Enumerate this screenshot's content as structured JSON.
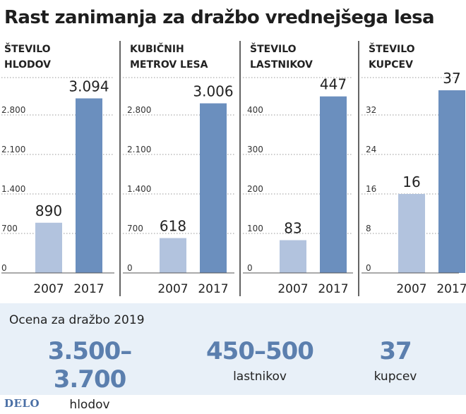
{
  "title": "Rast zanimanja za dražbo vrednejšega lesa",
  "colors": {
    "bar_2007": "#b2c3de",
    "bar_2017": "#6b8fbe",
    "grid": "#9a9a9a",
    "estimate_value": "#5b7fae",
    "estimate_bg": "#e8f0f8",
    "logo": "#4a6fa5"
  },
  "chart_data": [
    {
      "type": "bar",
      "title_lines": [
        "ŠTEVILO",
        "HLODOV"
      ],
      "categories": [
        "2007",
        "2017"
      ],
      "values": [
        890,
        3094
      ],
      "value_labels": [
        "890",
        "3.094"
      ],
      "ylim": [
        0,
        3500
      ],
      "yticks": [
        0,
        700,
        1400,
        2100,
        2800
      ],
      "ytick_labels": [
        "0",
        "700",
        "1.400",
        "2.100",
        "2.800"
      ],
      "grid": true
    },
    {
      "type": "bar",
      "title_lines": [
        "KUBIČNIH",
        "METROV LESA"
      ],
      "categories": [
        "2007",
        "2017"
      ],
      "values": [
        618,
        3006
      ],
      "value_labels": [
        "618",
        "3.006"
      ],
      "ylim": [
        0,
        3500
      ],
      "yticks": [
        0,
        700,
        1400,
        2100,
        2800
      ],
      "ytick_labels": [
        "0",
        "700",
        "1.400",
        "2.100",
        "2.800"
      ],
      "grid": true
    },
    {
      "type": "bar",
      "title_lines": [
        "ŠTEVILO",
        "LASTNIKOV"
      ],
      "categories": [
        "2007",
        "2017"
      ],
      "values": [
        83,
        447
      ],
      "value_labels": [
        "83",
        "447"
      ],
      "ylim": [
        0,
        500
      ],
      "yticks": [
        0,
        100,
        200,
        300,
        400
      ],
      "ytick_labels": [
        "0",
        "100",
        "200",
        "300",
        "400"
      ],
      "grid": true
    },
    {
      "type": "bar",
      "title_lines": [
        "ŠTEVILO",
        "KUPCEV"
      ],
      "categories": [
        "2007",
        "2017"
      ],
      "values": [
        16,
        37
      ],
      "value_labels": [
        "16",
        "37"
      ],
      "ylim": [
        0,
        40
      ],
      "yticks": [
        0,
        8,
        16,
        24,
        32
      ],
      "ytick_labels": [
        "0",
        "8",
        "16",
        "24",
        "32"
      ],
      "grid": true
    }
  ],
  "estimate": {
    "heading": "Ocena za dražbo 2019",
    "items": [
      {
        "value": "3.500–3.700",
        "unit": "hlodov"
      },
      {
        "value": "450–500",
        "unit": "lastnikov"
      },
      {
        "value": "37",
        "unit": "kupcev"
      }
    ]
  },
  "logo": "DELO"
}
